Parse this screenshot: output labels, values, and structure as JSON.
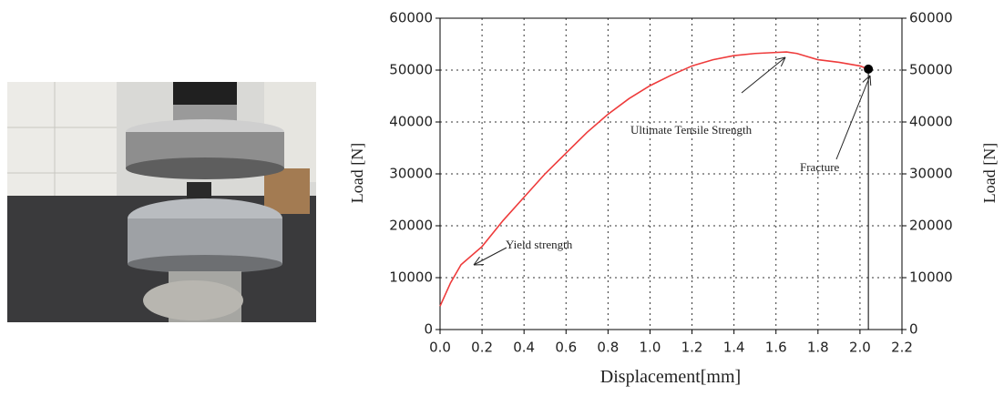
{
  "chart_data": {
    "type": "line",
    "xlabel": "Displacement[mm]",
    "ylabel": "Load [N]",
    "y2label": "Load [N]",
    "x": [
      0,
      0.05,
      0.1,
      0.2,
      0.3,
      0.4,
      0.5,
      0.6,
      0.7,
      0.8,
      0.9,
      1.0,
      1.1,
      1.2,
      1.3,
      1.4,
      1.5,
      1.6,
      1.65,
      1.7,
      1.8,
      1.9,
      2.0,
      2.04
    ],
    "series": [
      {
        "color": "#ee3b3b",
        "values": [
          4500,
          9000,
          12500,
          16000,
          21000,
          25500,
          30000,
          34000,
          38000,
          41500,
          44500,
          47000,
          49000,
          50800,
          52000,
          52800,
          53200,
          53400,
          53500,
          53200,
          52000,
          51500,
          50800,
          50200
        ]
      }
    ],
    "markers": [
      {
        "x": 2.04,
        "y": 50200,
        "color": "#000000"
      }
    ],
    "annotations": [
      {
        "text": "Yield strength"
      },
      {
        "text": "Ultimate Tensile Strength"
      },
      {
        "text": "Fracture"
      }
    ],
    "xlim": [
      0,
      2.2
    ],
    "xticks": [
      {
        "value": 0,
        "label": "0.0"
      },
      0.2,
      0.4,
      0.6,
      0.8,
      {
        "value": 1,
        "label": "1.0"
      },
      1.2,
      1.4,
      1.6,
      1.8,
      {
        "value": 2,
        "label": "2.0"
      },
      2.2
    ],
    "ylim": [
      0,
      60000
    ],
    "yticks": [
      0,
      10000,
      20000,
      30000,
      40000,
      50000,
      60000
    ],
    "y2lim": [
      0,
      60000
    ],
    "y2ticks": [
      0,
      10000,
      20000,
      30000,
      40000,
      50000,
      60000
    ],
    "grid": true
  }
}
